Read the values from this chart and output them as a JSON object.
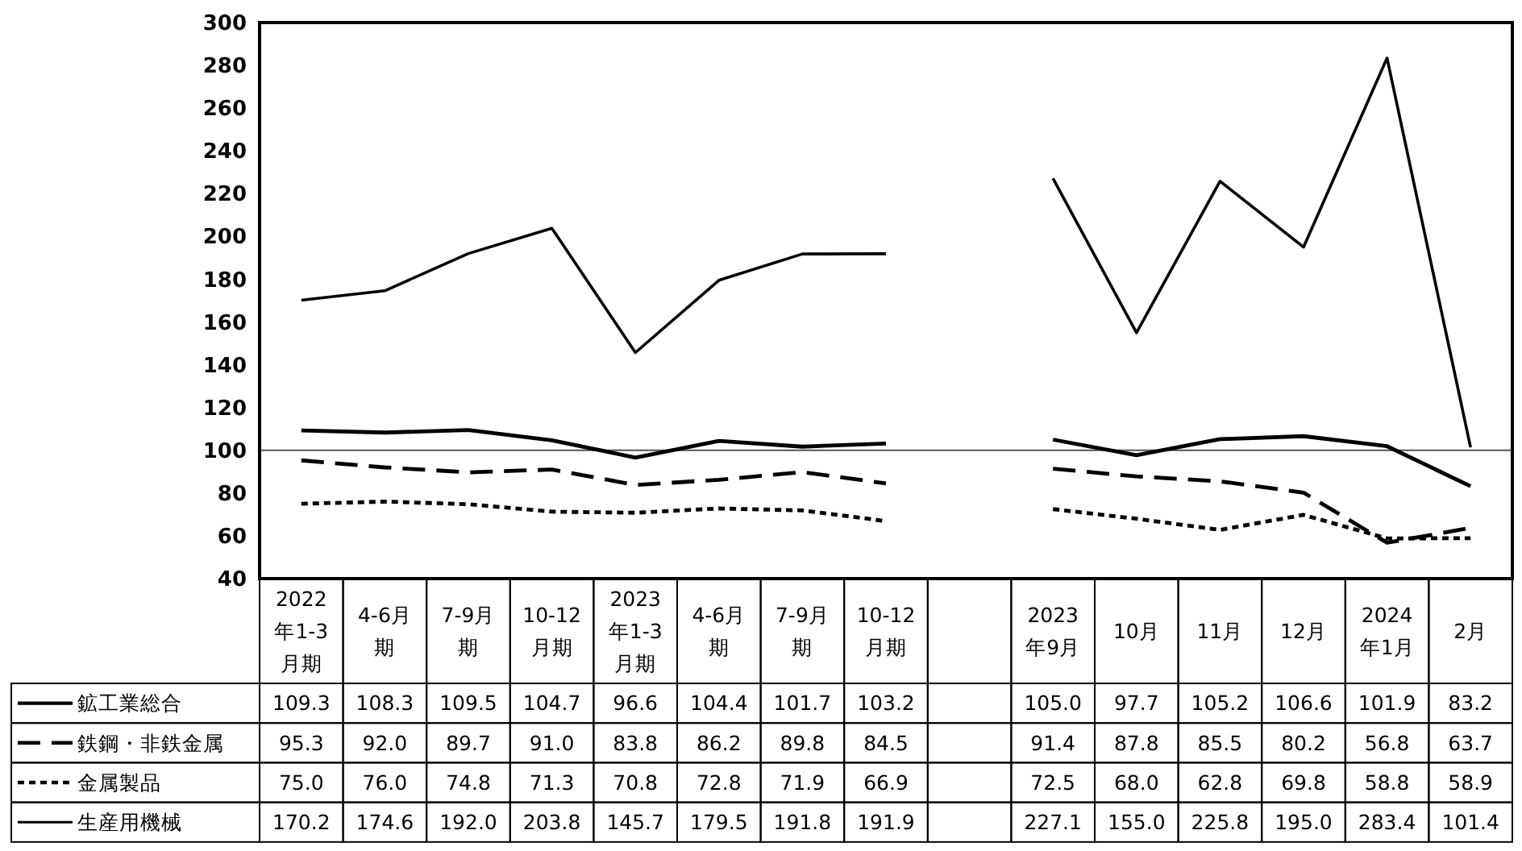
{
  "chart_data": {
    "type": "line",
    "categories": [
      "2022年1-3月期",
      "4-6月期",
      "7-9月期",
      "10-12月期",
      "2023年1-3月期",
      "4-6月期",
      "7-9月期",
      "10-12月期",
      null,
      "2023年9月",
      "10月",
      "11月",
      "12月",
      "2024年1月",
      "2月"
    ],
    "series": [
      {
        "name": "鉱工業総合",
        "color": "#000000",
        "line_style": "solid",
        "values": [
          109.3,
          108.3,
          109.5,
          104.7,
          96.6,
          104.4,
          101.7,
          103.2,
          null,
          105.0,
          97.7,
          105.2,
          106.6,
          101.9,
          83.2
        ],
        "value_labels": [
          "109.3",
          "108.3",
          "109.5",
          "104.7",
          "96.6",
          "104.4",
          "101.7",
          "103.2",
          null,
          "105.0",
          "97.7",
          "105.2",
          "106.6",
          "101.9",
          "83.2"
        ]
      },
      {
        "name": "鉄鋼・非鉄金属",
        "color": "#000000",
        "line_style": "dashed",
        "values": [
          95.3,
          92.0,
          89.7,
          91.0,
          83.8,
          86.2,
          89.8,
          84.5,
          null,
          91.4,
          87.8,
          85.5,
          80.2,
          56.8,
          63.7
        ],
        "value_labels": [
          "95.3",
          "92.0",
          "89.7",
          "91.0",
          "83.8",
          "86.2",
          "89.8",
          "84.5",
          null,
          "91.4",
          "87.8",
          "85.5",
          "80.2",
          "56.8",
          "63.7"
        ]
      },
      {
        "name": "金属製品",
        "color": "#000000",
        "line_style": "dotted",
        "values": [
          75.0,
          76.0,
          74.8,
          71.3,
          70.8,
          72.8,
          71.9,
          66.9,
          null,
          72.5,
          68.0,
          62.8,
          69.8,
          58.8,
          58.9
        ],
        "value_labels": [
          "75.0",
          "76.0",
          "74.8",
          "71.3",
          "70.8",
          "72.8",
          "71.9",
          "66.9",
          null,
          "72.5",
          "68.0",
          "62.8",
          "69.8",
          "58.8",
          "58.9"
        ]
      },
      {
        "name": "生産用機械",
        "color": "#000000",
        "line_style": "solid",
        "values": [
          170.2,
          174.6,
          192.0,
          203.8,
          145.7,
          179.5,
          191.8,
          191.9,
          null,
          227.1,
          155.0,
          225.8,
          195.0,
          283.4,
          101.4
        ],
        "value_labels": [
          "170.2",
          "174.6",
          "192.0",
          "203.8",
          "145.7",
          "179.5",
          "191.8",
          "191.9",
          null,
          "227.1",
          "155.0",
          "225.8",
          "195.0",
          "283.4",
          "101.4"
        ]
      }
    ],
    "ylim": [
      40,
      300
    ],
    "yticks": [
      40,
      60,
      80,
      100,
      120,
      140,
      160,
      180,
      200,
      220,
      240,
      260,
      280,
      300
    ],
    "ref_lines": [
      {
        "axis": "y",
        "value": 100,
        "color": "#555555"
      }
    ],
    "grid": false,
    "legend": "bottom"
  }
}
